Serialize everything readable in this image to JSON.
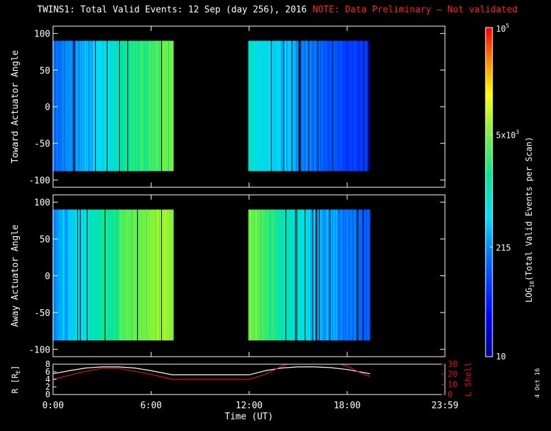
{
  "title": {
    "main": "TWINS1: Total Valid Events: 12 Sep (day 256), 2016",
    "note": "NOTE: Data Preliminary – Not validated"
  },
  "colors": {
    "background": "#000000",
    "text": "#ffffff",
    "note": "#ff2222",
    "l_shell": "#dd1111",
    "r_line": "#ffffff"
  },
  "colorbar": {
    "label": "LOG10(Total Valid Events per Scan)",
    "label_parts": [
      "LOG",
      "10",
      "(Total Valid Events per Scan)"
    ],
    "scale": "log",
    "range": [
      10,
      100000
    ],
    "tick_labels": [
      {
        "value": 10,
        "text": "10"
      },
      {
        "value": 215,
        "text": "215"
      },
      {
        "value": 5000,
        "text": "5x10",
        "sup": "3"
      },
      {
        "value": 100000,
        "text": "10",
        "sup": "5"
      }
    ],
    "colormap": "rainbow (blue-cyan-green-yellow-red)"
  },
  "chart_data": [
    {
      "type": "heatmap",
      "panel": "toward",
      "ylabel": "Toward Actuator Angle",
      "ylim": [
        -110,
        110
      ],
      "yticks": [
        "100",
        "50",
        "0",
        "-50",
        "-100"
      ],
      "ytick_values": [
        100,
        50,
        0,
        -50,
        -100
      ],
      "data_y_range": [
        -88,
        90
      ],
      "xlim_hours": [
        0,
        23.983
      ],
      "segments": [
        {
          "start_h": 0.0,
          "end_h": 7.38,
          "level_log10": [
            2.1,
            2.6,
            3.3,
            3.6
          ]
        },
        {
          "start_h": 11.95,
          "end_h": 19.4,
          "level_log10": [
            3.0,
            2.5,
            2.0,
            1.7
          ]
        }
      ]
    },
    {
      "type": "heatmap",
      "panel": "away",
      "ylabel": "Away Actuator Angle",
      "ylim": [
        -110,
        110
      ],
      "yticks": [
        "100",
        "50",
        "0",
        "-50",
        "-100"
      ],
      "ytick_values": [
        100,
        50,
        0,
        -50,
        -100
      ],
      "data_y_range": [
        -88,
        90
      ],
      "xlim_hours": [
        0,
        23.983
      ],
      "segments": [
        {
          "start_h": 0.0,
          "end_h": 7.38,
          "level_log10": [
            2.4,
            3.0,
            3.6,
            3.9
          ]
        },
        {
          "start_h": 11.95,
          "end_h": 19.4,
          "level_log10": [
            3.7,
            3.0,
            2.4,
            2.0
          ]
        }
      ]
    },
    {
      "type": "line",
      "panel": "orbit",
      "xlabel": "Time (UT)",
      "xticks": [
        "0:00",
        "6:00",
        "12:00",
        "18:00",
        "23:59"
      ],
      "xtick_hours": [
        0,
        6,
        12,
        18,
        23.983
      ],
      "xlim_hours": [
        0,
        23.983
      ],
      "left_axis": {
        "label": "R [RE]",
        "label_parts": [
          "R [R",
          "E",
          "]"
        ],
        "ylim": [
          0,
          8
        ],
        "yticks": [
          "8",
          "6",
          "4",
          "2",
          "0"
        ],
        "ytick_values": [
          8,
          6,
          4,
          2,
          0
        ]
      },
      "right_axis": {
        "label": "L Shell",
        "ylim": [
          0,
          30
        ],
        "yticks": [
          "30",
          "20",
          "10",
          "0"
        ],
        "ytick_values": [
          30,
          20,
          10,
          0
        ]
      },
      "series": [
        {
          "name": "R [RE]",
          "axis": "left",
          "x": [
            0,
            1,
            2,
            3,
            4,
            5,
            6,
            7.3,
            12,
            13,
            14,
            15,
            16,
            17,
            18,
            19,
            19.4
          ],
          "y": [
            5.5,
            6.3,
            7.0,
            7.3,
            7.3,
            7.0,
            6.3,
            5.2,
            5.2,
            6.3,
            7.0,
            7.3,
            7.3,
            7.1,
            6.6,
            5.8,
            5.5
          ]
        },
        {
          "name": "L Shell",
          "axis": "right",
          "x": [
            0,
            1,
            2,
            3,
            4,
            5,
            6,
            7.3,
            12,
            13,
            14,
            15,
            16,
            17,
            18,
            19,
            19.4
          ],
          "y": [
            15,
            19,
            23,
            26,
            26,
            23,
            20,
            15,
            15,
            20,
            28,
            34,
            35,
            33,
            28,
            20,
            18
          ]
        }
      ]
    }
  ],
  "stamp": "4 Oct 16"
}
